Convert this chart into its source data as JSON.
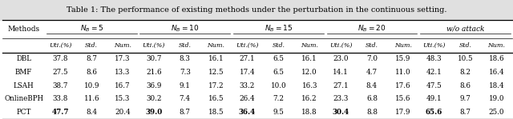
{
  "title": "Table 1: The performance of existing methods under the perturbation in the continuous setting.",
  "group_labels": [
    "$N_B = 5$",
    "$N_B = 10$",
    "$N_B = 15$",
    "$N_B = 20$",
    "w/o attack"
  ],
  "sub_col_labels": [
    "Uti.(%)",
    "Std.",
    "Num.",
    "Uti.(%)",
    "Std.",
    "Num.",
    "Uti.(%)",
    "Std.",
    "Num.",
    "Uti.(%)",
    "Std.",
    "Num.",
    "Uti.(%)",
    "Std.",
    "Num."
  ],
  "methods": [
    "DBL",
    "BMF",
    "LSAH",
    "OnlineBPH",
    "PCT"
  ],
  "data": [
    [
      "37.8",
      "8.7",
      "17.3",
      "30.7",
      "8.3",
      "16.1",
      "27.1",
      "6.5",
      "16.1",
      "23.0",
      "7.0",
      "15.9",
      "48.3",
      "10.5",
      "18.6"
    ],
    [
      "27.5",
      "8.6",
      "13.3",
      "21.6",
      "7.3",
      "12.5",
      "17.4",
      "6.5",
      "12.0",
      "14.1",
      "4.7",
      "11.0",
      "42.1",
      "8.2",
      "16.4"
    ],
    [
      "38.7",
      "10.9",
      "16.7",
      "36.9",
      "9.1",
      "17.2",
      "33.2",
      "10.0",
      "16.3",
      "27.1",
      "8.4",
      "17.6",
      "47.5",
      "8.6",
      "18.4"
    ],
    [
      "33.8",
      "11.6",
      "15.3",
      "30.2",
      "7.4",
      "16.5",
      "26.4",
      "7.2",
      "16.2",
      "23.3",
      "6.8",
      "15.6",
      "49.1",
      "9.7",
      "19.0"
    ],
    [
      "47.7",
      "8.4",
      "20.4",
      "39.0",
      "8.7",
      "18.5",
      "36.4",
      "9.5",
      "18.8",
      "30.4",
      "8.8",
      "17.9",
      "65.6",
      "8.7",
      "25.0"
    ]
  ],
  "bold_cols_per_row": {
    "4": [
      0,
      3,
      6,
      9,
      12
    ]
  },
  "title_bg": "#e8e8e8",
  "bg": "#ffffff",
  "figsize": [
    6.4,
    1.49
  ],
  "dpi": 100
}
